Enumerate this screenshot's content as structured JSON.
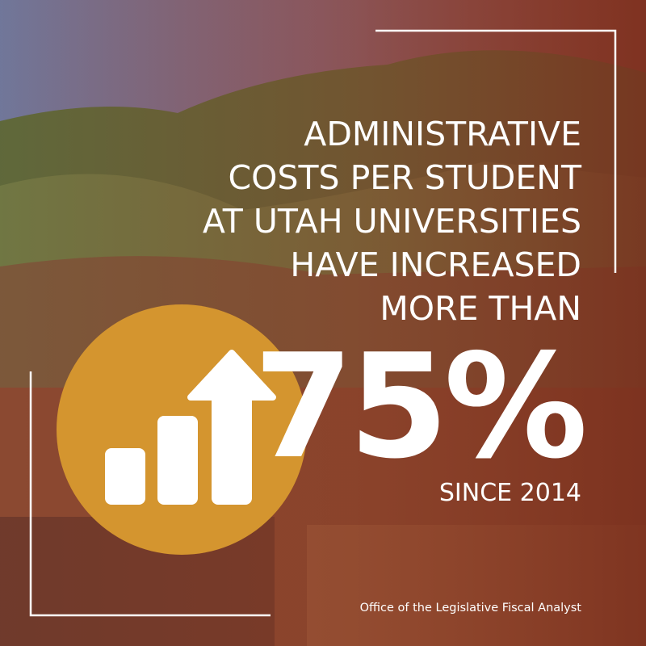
{
  "headline": {
    "lines": [
      "ADMINISTRATIVE",
      "COSTS PER STUDENT",
      "AT UTAH UNIVERSITIES",
      "HAVE INCREASED",
      "MORE THAN"
    ]
  },
  "stat": {
    "value": "75%",
    "caption": "SINCE 2014"
  },
  "source": "Office of the Legislative Fiscal Analyst"
}
